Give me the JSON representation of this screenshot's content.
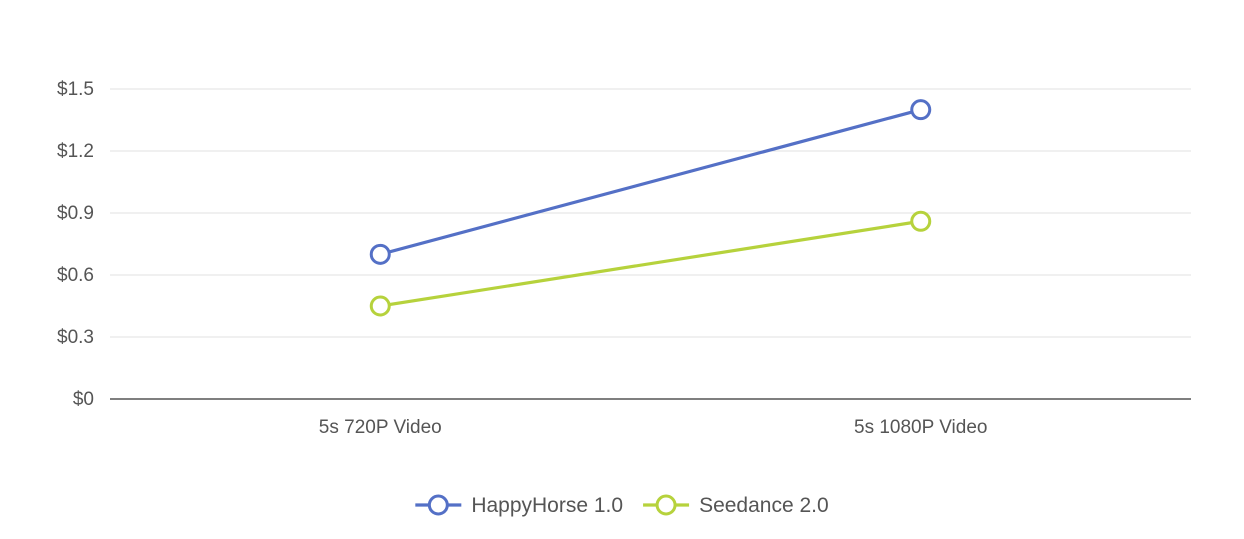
{
  "chart_data": {
    "type": "line",
    "categories": [
      "5s 720P Video",
      "5s 1080P Video"
    ],
    "series": [
      {
        "name": "HappyHorse 1.0",
        "values": [
          0.7,
          1.4
        ],
        "color": "#5470c6"
      },
      {
        "name": "Seedance 2.0",
        "values": [
          0.45,
          0.86
        ],
        "color": "#b6d23c"
      }
    ],
    "yticks": [
      0,
      0.3,
      0.6,
      0.9,
      1.2,
      1.5
    ],
    "ytick_labels": [
      "$0",
      "$0.3",
      "$0.6",
      "$0.9",
      "$1.2",
      "$1.5"
    ],
    "ylim": [
      0,
      1.5
    ],
    "grid": true,
    "legend_position": "bottom-center",
    "axis_color": "#333333",
    "grid_color": "#e0e0e0",
    "label_color": "#555555"
  }
}
